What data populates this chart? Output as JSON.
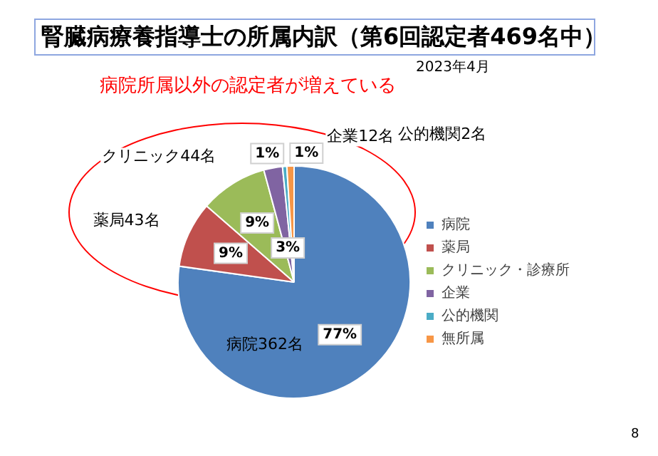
{
  "chart_data": {
    "type": "pie",
    "title": "腎臓病療養指導士の所属内訳（第6回認定者469名中）",
    "subtitle": "病院所属以外の認定者が増えている",
    "categories": [
      "病院",
      "薬局",
      "クリニック・診療所",
      "企業",
      "公的機関",
      "無所属"
    ],
    "values": [
      77.2,
      9.2,
      9.4,
      2.6,
      0.6,
      1.0
    ],
    "colors": [
      "#4f81bd",
      "#c0504d",
      "#9bbb59",
      "#8064a2",
      "#4bacc6",
      "#f79646"
    ],
    "value_labels": [
      "77%",
      "9%",
      "9%",
      "3%",
      "1%",
      "1%"
    ],
    "legend": "right",
    "annotations": [
      {
        "text": "病院362名",
        "x": "病院"
      },
      {
        "text": "薬局43名",
        "x": "薬局"
      },
      {
        "text": "クリニック44名",
        "x": "クリニック・診療所"
      },
      {
        "text": "企業12名",
        "x": "企業"
      },
      {
        "text": "公的機関2名",
        "x": "公的機関"
      },
      "2023年4月",
      "8"
    ]
  }
}
